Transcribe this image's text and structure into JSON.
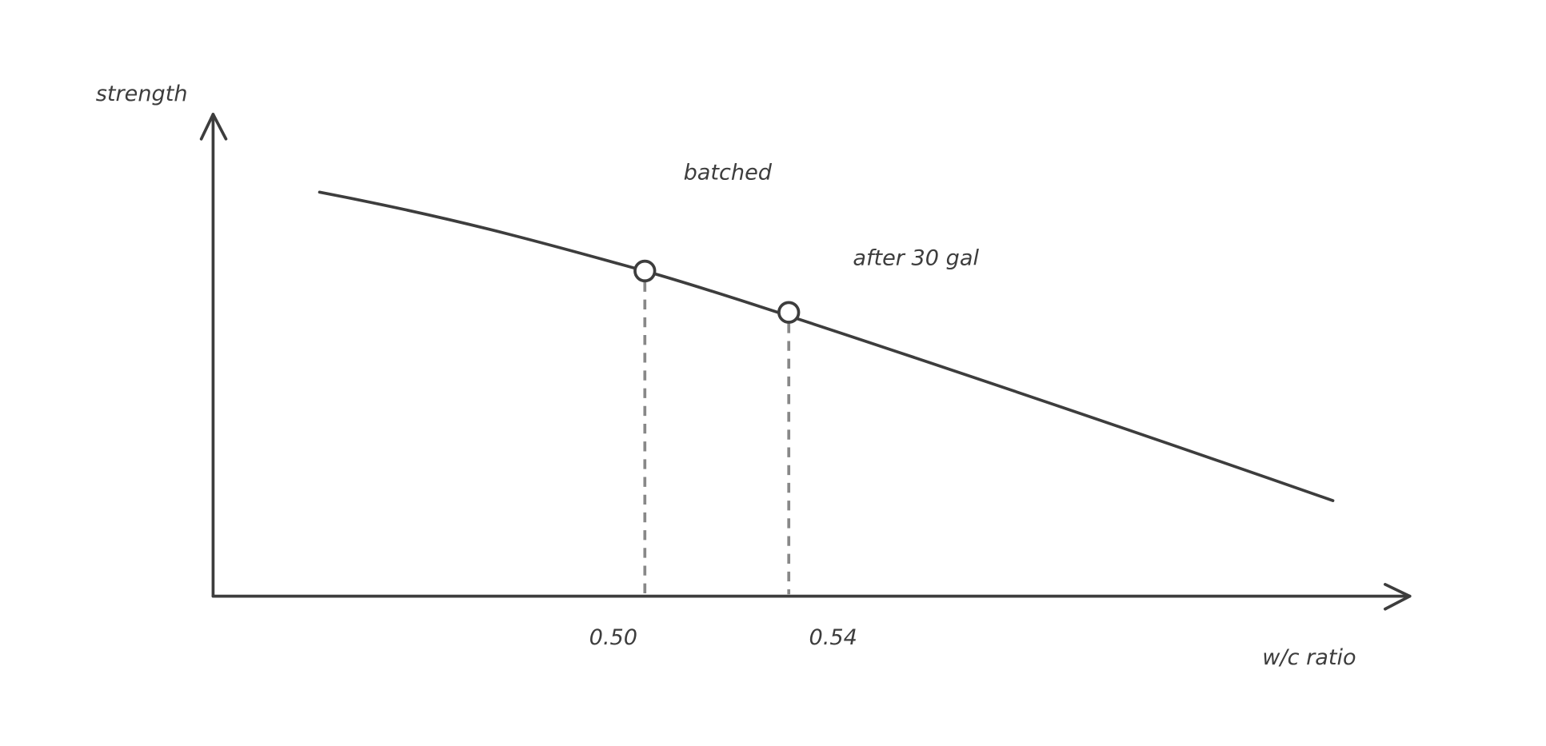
{
  "axes": {
    "y_label": "strength",
    "x_label": "w/c ratio"
  },
  "annotations": {
    "upper": "batched",
    "lower": "after 30 gal"
  },
  "markers": [
    {
      "label": "0.50"
    },
    {
      "label": "0.54"
    }
  ]
}
